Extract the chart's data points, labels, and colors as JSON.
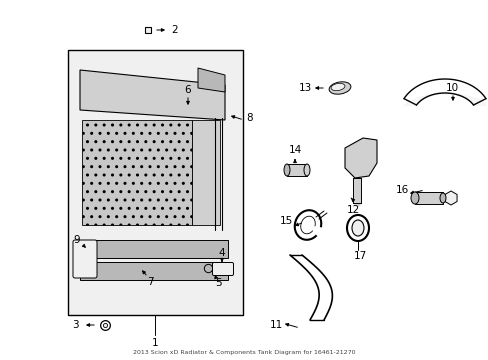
{
  "title": "2013 Scion xD Radiator & Components Tank Diagram for 16461-21270",
  "bg_color": "#ffffff",
  "line_color": "#000000",
  "fill_light": "#f0f0f0",
  "fill_gray": "#d0d0d0",
  "fill_dark": "#b8b8b8"
}
